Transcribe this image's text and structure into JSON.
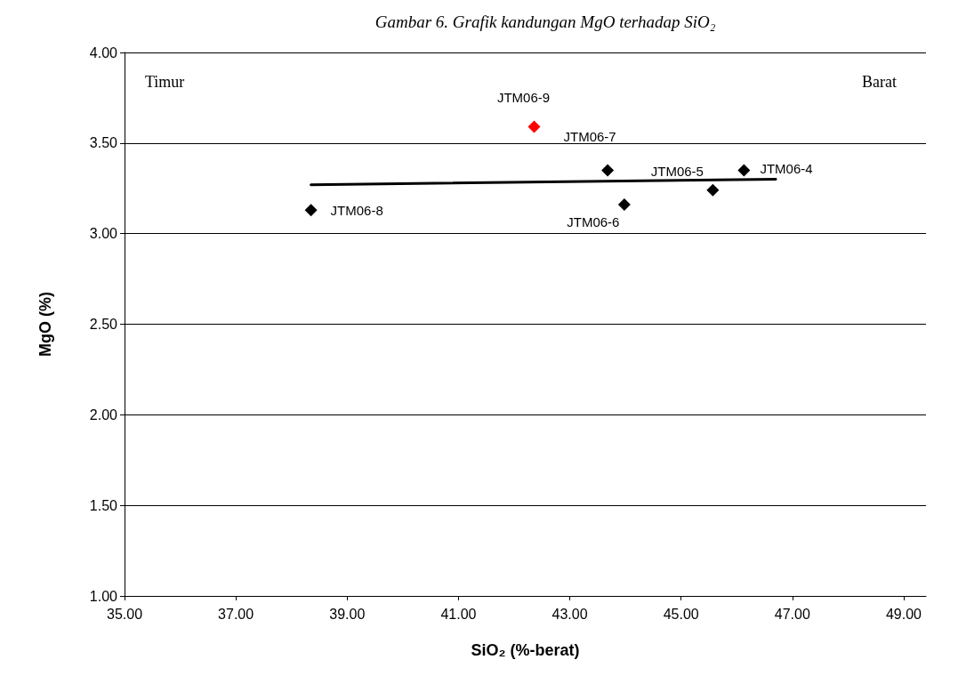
{
  "chart_data": {
    "type": "scatter",
    "title": "Gambar 6. Grafik kandungan MgO terhadap SiO₂",
    "xlabel": "SiO₂ (%-berat)",
    "ylabel": "MgO (%)",
    "annotations": [
      "Timur",
      "Barat"
    ],
    "xlim": [
      35,
      49.4
    ],
    "xticks": [
      {
        "value": 35,
        "label": "35.00"
      },
      {
        "value": 37,
        "label": "37.00"
      },
      {
        "value": 39,
        "label": "39.00"
      },
      {
        "value": 41,
        "label": "41.00"
      },
      {
        "value": 43,
        "label": "43.00"
      },
      {
        "value": 45,
        "label": "45.00"
      },
      {
        "value": 47,
        "label": "47.00"
      },
      {
        "value": 49,
        "label": "49.00"
      }
    ],
    "ylim": [
      1,
      4
    ],
    "yticks": [
      {
        "value": 1,
        "label": "1.00"
      },
      {
        "value": 1.5,
        "label": "1.50"
      },
      {
        "value": 2,
        "label": "2.00"
      },
      {
        "value": 2.5,
        "label": "2.50"
      },
      {
        "value": 3,
        "label": "3.00"
      },
      {
        "value": 3.5,
        "label": "3.50"
      },
      {
        "value": 4,
        "label": "4.00"
      }
    ],
    "grid": "y",
    "marker": "diamond",
    "series": [
      {
        "type": "scatter",
        "x": [
          38.35,
          42.36,
          43.68,
          43.98,
          45.57,
          46.13
        ],
        "values": [
          3.13,
          3.59,
          3.35,
          3.16,
          3.24,
          3.35
        ],
        "colors": [
          "#000000",
          "#ff0000",
          "#000000",
          "#000000",
          "#000000",
          "#000000"
        ],
        "value_labels": [
          "JTM06-8",
          "JTM06-9",
          "JTM06-7",
          "JTM06-6",
          "JTM06-5",
          "JTM06-4"
        ]
      },
      {
        "type": "line",
        "x": [
          38.35,
          46.7
        ],
        "values": [
          3.27,
          3.3
        ],
        "color": "#000000",
        "marker": "none"
      }
    ]
  }
}
